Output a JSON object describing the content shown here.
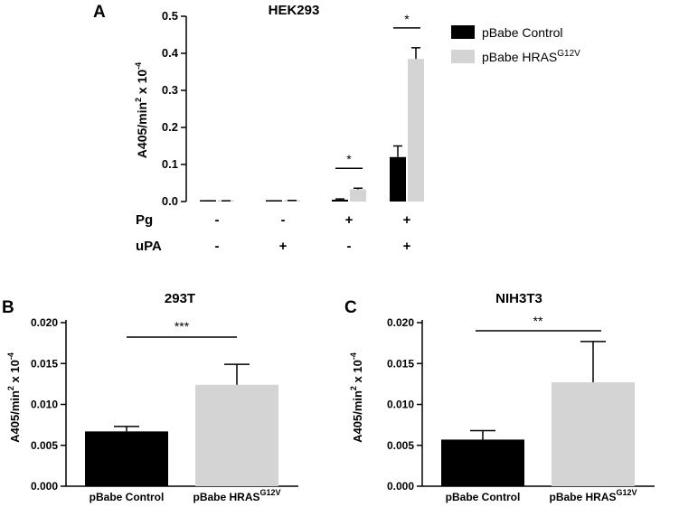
{
  "panels": {
    "a": {
      "letter": "A",
      "title": "HEK293"
    },
    "b": {
      "letter": "B",
      "title": "293T"
    },
    "c": {
      "letter": "C",
      "title": "NIH3T3"
    }
  },
  "legend": {
    "control": "pBabe Control",
    "hras_base": "pBabe HRAS",
    "hras_sup": "G12V"
  },
  "colors": {
    "control": "#000000",
    "hras": "#d4d4d4"
  },
  "chart_data": [
    {
      "type": "bar",
      "title": "HEK293",
      "ylabel_base": "A405/min",
      "ylabel_sup1": "2",
      "ylabel_mid": " x 10",
      "ylabel_sup2": "-4",
      "ylim": [
        0,
        0.5
      ],
      "yticks": [
        "0.0",
        "0.1",
        "0.2",
        "0.3",
        "0.4",
        "0.5"
      ],
      "legend_position": "top-right",
      "series": [
        {
          "name": "pBabe Control",
          "values": [
            0.001,
            0.001,
            0.005,
            0.12
          ],
          "errors": [
            0.001,
            0.001,
            0.002,
            0.03
          ]
        },
        {
          "name": "pBabe HRASG12V",
          "values": [
            0.001,
            0.002,
            0.033,
            0.385
          ],
          "errors": [
            0.001,
            0.001,
            0.003,
            0.03
          ]
        }
      ],
      "conditions": {
        "row_labels": [
          "Pg",
          "uPA"
        ],
        "pg": [
          "-",
          "-",
          "+",
          "+"
        ],
        "upa": [
          "-",
          "+",
          "-",
          "+"
        ]
      },
      "significance": [
        {
          "group": 3,
          "label": "*"
        },
        {
          "group": 4,
          "label": "*"
        }
      ]
    },
    {
      "type": "bar",
      "title": "293T",
      "ylabel_base": "A405/min",
      "ylabel_sup1": "2",
      "ylabel_mid": " x 10",
      "ylabel_sup2": "-4",
      "ylim": [
        0,
        0.02
      ],
      "yticks": [
        "0.000",
        "0.005",
        "0.010",
        "0.015",
        "0.020"
      ],
      "categories": [
        "pBabe Control",
        "pBabe HRASG12V"
      ],
      "values": [
        0.0067,
        0.0124
      ],
      "errors": [
        0.0006,
        0.0025
      ],
      "significance": "***"
    },
    {
      "type": "bar",
      "title": "NIH3T3",
      "ylabel_base": "A405/min",
      "ylabel_sup1": "2",
      "ylabel_mid": " x 10",
      "ylabel_sup2": "-4",
      "ylim": [
        0,
        0.02
      ],
      "yticks": [
        "0.000",
        "0.005",
        "0.010",
        "0.015",
        "0.020"
      ],
      "categories": [
        "pBabe Control",
        "pBabe HRASG12V"
      ],
      "values": [
        0.0057,
        0.0127
      ],
      "errors": [
        0.0011,
        0.005
      ],
      "significance": "**"
    }
  ]
}
